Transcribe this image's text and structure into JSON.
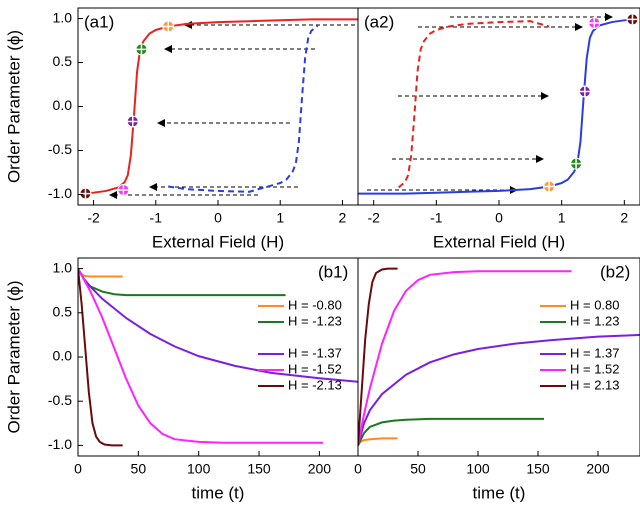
{
  "chart_data": [
    {
      "type": "line",
      "panel_label": "(a1)",
      "xlabel": "External Field (H)",
      "ylabel": "Order Parameter (ϕ)",
      "xlim": [
        -2.25,
        2.25
      ],
      "ylim": [
        -1.12,
        1.12
      ],
      "xticks": [
        -2,
        -1,
        0,
        1,
        2
      ],
      "yticks": [
        {
          "value": 1,
          "label": "1.0"
        },
        0.5,
        {
          "value": 0,
          "label": "0.0"
        },
        -0.5,
        {
          "value": -1,
          "label": "-1.0"
        }
      ],
      "series": [
        {
          "color": "#e8231e",
          "style": "solid",
          "x": [
            -2.2,
            -2.0,
            -1.8,
            -1.6,
            -1.5,
            -1.45,
            -1.4,
            -1.35,
            -1.3,
            -1.25,
            -1.2,
            -1.1,
            -1.0,
            -0.8,
            -0.5,
            0,
            0.5,
            1.0,
            1.5,
            2.0,
            2.25
          ],
          "values": [
            -0.99,
            -0.98,
            -0.96,
            -0.92,
            -0.86,
            -0.78,
            -0.55,
            -0.1,
            0.4,
            0.65,
            0.74,
            0.83,
            0.87,
            0.91,
            0.94,
            0.96,
            0.97,
            0.98,
            0.99,
            0.99,
            0.99
          ]
        },
        {
          "color": "#2b3de0",
          "style": "dashed",
          "x": [
            -0.8,
            -0.5,
            0,
            0.5,
            0.8,
            1.0,
            1.1,
            1.2,
            1.25,
            1.3,
            1.35,
            1.4,
            1.45,
            1.5,
            1.6
          ],
          "values": [
            -0.91,
            -0.94,
            -0.96,
            -0.97,
            -0.91,
            -0.87,
            -0.83,
            -0.74,
            -0.65,
            -0.4,
            0.1,
            0.55,
            0.78,
            0.86,
            0.92
          ]
        }
      ],
      "points": {
        "x": [
          -2.13,
          -1.52,
          -1.37,
          -1.23,
          -0.8
        ],
        "values": [
          -0.99,
          -0.95,
          -0.17,
          0.65,
          0.91
        ],
        "colors": [
          "#6b0a0a",
          "#ff33ff",
          "#7a1fa0",
          "#1a8a1a",
          "#ff9933"
        ]
      }
    },
    {
      "type": "line",
      "panel_label": "(a2)",
      "xlabel": "External Field (H)",
      "xlim": [
        -2.25,
        2.25
      ],
      "ylim": [
        -1.12,
        1.12
      ],
      "xticks": [
        -2,
        -1,
        0,
        1,
        2
      ],
      "series": [
        {
          "color": "#2b3de0",
          "style": "solid",
          "x": [
            -2.25,
            -2.0,
            -1.5,
            -1.0,
            -0.5,
            0,
            0.5,
            0.8,
            1.0,
            1.1,
            1.2,
            1.25,
            1.3,
            1.35,
            1.4,
            1.45,
            1.5,
            1.6,
            1.8,
            2.0,
            2.2
          ],
          "values": [
            -0.99,
            -0.99,
            -0.99,
            -0.98,
            -0.97,
            -0.96,
            -0.94,
            -0.91,
            -0.87,
            -0.83,
            -0.74,
            -0.65,
            -0.4,
            0.1,
            0.55,
            0.78,
            0.86,
            0.92,
            0.96,
            0.98,
            0.99
          ]
        },
        {
          "color": "#e8231e",
          "style": "dashed",
          "x": [
            -1.6,
            -1.5,
            -1.45,
            -1.4,
            -1.35,
            -1.3,
            -1.25,
            -1.2,
            -1.1,
            -1.0,
            -0.8,
            -0.5,
            0,
            0.5,
            0.8
          ],
          "values": [
            -0.92,
            -0.86,
            -0.78,
            -0.55,
            -0.1,
            0.4,
            0.65,
            0.74,
            0.83,
            0.87,
            0.91,
            0.94,
            0.96,
            0.97,
            0.91
          ]
        }
      ],
      "points": {
        "x": [
          0.8,
          1.23,
          1.37,
          1.52,
          2.13
        ],
        "values": [
          -0.91,
          -0.65,
          0.17,
          0.95,
          0.99
        ],
        "colors": [
          "#ff9933",
          "#1a8a1a",
          "#7a1fa0",
          "#ff33ff",
          "#6b0a0a"
        ]
      }
    },
    {
      "type": "line",
      "panel_label": "(b1)",
      "xlabel": "time (t)",
      "ylabel": "Order Parameter (ϕ)",
      "xlim": [
        0,
        232
      ],
      "ylim": [
        -1.12,
        1.12
      ],
      "xticks": [
        0,
        50,
        100,
        150,
        200
      ],
      "yticks": [
        {
          "value": 1,
          "label": "1.0"
        },
        0.5,
        {
          "value": 0,
          "label": "0.0"
        },
        -0.5,
        {
          "value": -1,
          "label": "-1.0"
        }
      ],
      "legend": "right",
      "series": [
        {
          "name": "H = -0.80",
          "color": "#ff8c1a",
          "style": "solid",
          "x": [
            0,
            2,
            5,
            10,
            20,
            37
          ],
          "values": [
            1.0,
            0.95,
            0.92,
            0.91,
            0.91,
            0.91
          ]
        },
        {
          "name": "H = -1.23",
          "color": "#1a7a1a",
          "style": "solid",
          "x": [
            0,
            5,
            10,
            20,
            30,
            40,
            60,
            100,
            172
          ],
          "values": [
            1.0,
            0.88,
            0.8,
            0.74,
            0.71,
            0.7,
            0.7,
            0.7,
            0.7
          ]
        },
        {
          "name": "H = -1.37",
          "color": "#7a1fe0",
          "style": "solid",
          "x": [
            0,
            5,
            10,
            20,
            40,
            60,
            80,
            100,
            130,
            160,
            200,
            232
          ],
          "values": [
            1.0,
            0.88,
            0.8,
            0.66,
            0.44,
            0.26,
            0.12,
            0.01,
            -0.1,
            -0.18,
            -0.24,
            -0.28
          ]
        },
        {
          "name": "H = -1.52",
          "color": "#ff22ff",
          "style": "solid",
          "x": [
            0,
            10,
            20,
            30,
            40,
            50,
            60,
            70,
            80,
            100,
            120,
            150,
            203
          ],
          "values": [
            1.0,
            0.75,
            0.45,
            0.1,
            -0.25,
            -0.55,
            -0.75,
            -0.87,
            -0.93,
            -0.96,
            -0.97,
            -0.97,
            -0.97
          ]
        },
        {
          "name": "H = -2.13",
          "color": "#6b0a0a",
          "style": "solid",
          "x": [
            0,
            3,
            6,
            9,
            12,
            15,
            18,
            22,
            28,
            37
          ],
          "values": [
            1.0,
            0.6,
            0.1,
            -0.4,
            -0.75,
            -0.9,
            -0.96,
            -0.99,
            -1.0,
            -1.0
          ]
        }
      ]
    },
    {
      "type": "line",
      "panel_label": "(b2)",
      "xlabel": "time (t)",
      "xlim": [
        0,
        235
      ],
      "ylim": [
        -1.12,
        1.12
      ],
      "xticks": [
        0,
        50,
        100,
        150,
        200
      ],
      "legend": "right",
      "series": [
        {
          "name": "H = 0.80",
          "color": "#ff8c1a",
          "style": "solid",
          "x": [
            0,
            2,
            5,
            10,
            20,
            33
          ],
          "values": [
            -1.0,
            -0.96,
            -0.94,
            -0.93,
            -0.92,
            -0.92
          ]
        },
        {
          "name": "H = 1.23",
          "color": "#1a7a1a",
          "style": "solid",
          "x": [
            0,
            5,
            10,
            20,
            30,
            40,
            60,
            100,
            155
          ],
          "values": [
            -1.0,
            -0.86,
            -0.79,
            -0.74,
            -0.72,
            -0.71,
            -0.7,
            -0.7,
            -0.7
          ]
        },
        {
          "name": "H = 1.37",
          "color": "#7a1fe0",
          "style": "solid",
          "x": [
            0,
            5,
            10,
            20,
            40,
            60,
            80,
            100,
            130,
            160,
            200,
            235
          ],
          "values": [
            -1.0,
            -0.75,
            -0.6,
            -0.42,
            -0.2,
            -0.06,
            0.03,
            0.09,
            0.15,
            0.19,
            0.23,
            0.25
          ]
        },
        {
          "name": "H = 1.52",
          "color": "#ff22ff",
          "style": "solid",
          "x": [
            0,
            5,
            10,
            20,
            30,
            40,
            50,
            60,
            80,
            100,
            130,
            178
          ],
          "values": [
            -1.0,
            -0.65,
            -0.35,
            0.15,
            0.52,
            0.75,
            0.87,
            0.93,
            0.96,
            0.97,
            0.97,
            0.97
          ]
        },
        {
          "name": "H = 2.13",
          "color": "#6b0a0a",
          "style": "solid",
          "x": [
            0,
            3,
            6,
            9,
            12,
            15,
            20,
            25,
            33
          ],
          "values": [
            -1.0,
            -0.4,
            0.2,
            0.6,
            0.85,
            0.95,
            0.99,
            1.0,
            1.0
          ]
        }
      ]
    }
  ]
}
